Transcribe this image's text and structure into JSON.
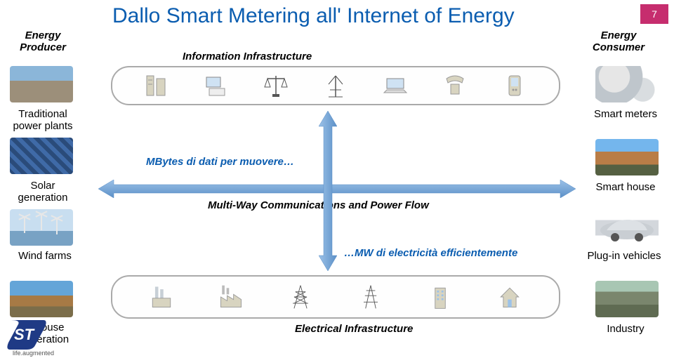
{
  "title": "Dallo Smart Metering all' Internet of Energy",
  "title_color": "#0b5db0",
  "page_number": "7",
  "page_badge_bg": "#c62d6e",
  "labels": {
    "producer": "Energy\nProducer",
    "consumer": "Energy\nConsumer",
    "info_infra": "Information Infrastructure",
    "trad_plants": "Traditional\npower plants",
    "smart_meters": "Smart meters",
    "solar": "Solar\ngeneration",
    "smart_house": "Smart house",
    "wind": "Wind farms",
    "plugin": "Plug-in vehicles",
    "inhouse": "In-House\nGeneration",
    "industry": "Industry",
    "elec_infra": "Electrical Infrastructure"
  },
  "midtext": {
    "mbytes": "MBytes di dati per muovere…",
    "mbytes_color": "#0b5db0",
    "multiway": "Multi-Way Communications and Power Flow",
    "mw_elec": "…MW di electricità efficientemente",
    "mw_elec_color": "#0b5db0"
  },
  "arrows": {
    "h_color": "#6ea2d6",
    "v_color": "#6ea2d6"
  },
  "row_box": {
    "border_color": "#aaaaaa",
    "bg": "#fefefe"
  },
  "logo": {
    "bg": "#1f3a85",
    "text": "ST",
    "tagline": "life.augmented"
  }
}
